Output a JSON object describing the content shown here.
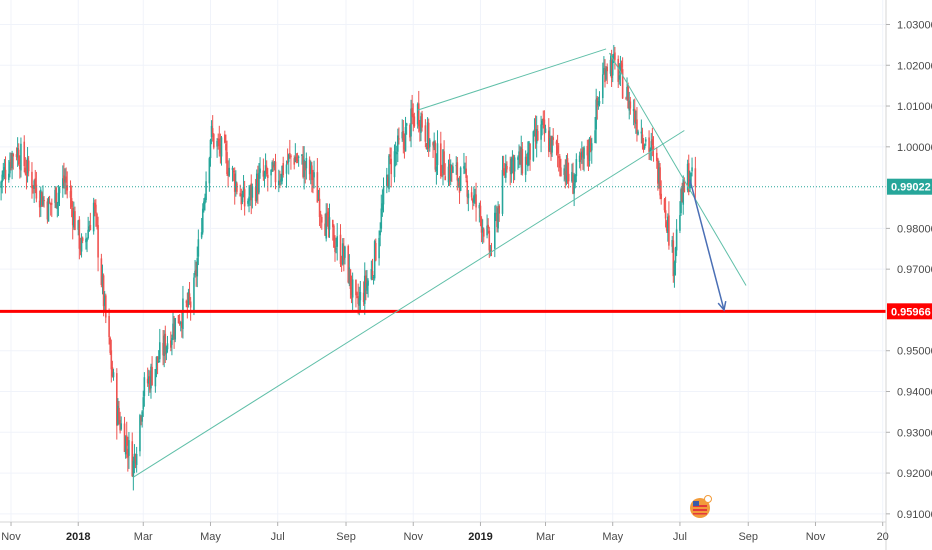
{
  "chart_data": {
    "type": "candlestick",
    "x_ticks": [
      {
        "date": "2017-11-01",
        "label": "Nov",
        "bold": false
      },
      {
        "date": "2018-01-01",
        "label": "2018",
        "bold": true
      },
      {
        "date": "2018-03-01",
        "label": "Mar",
        "bold": false
      },
      {
        "date": "2018-05-01",
        "label": "May",
        "bold": false
      },
      {
        "date": "2018-07-01",
        "label": "Jul",
        "bold": false
      },
      {
        "date": "2018-09-01",
        "label": "Sep",
        "bold": false
      },
      {
        "date": "2018-11-01",
        "label": "Nov",
        "bold": false
      },
      {
        "date": "2019-01-01",
        "label": "2019",
        "bold": true
      },
      {
        "date": "2019-03-01",
        "label": "Mar",
        "bold": false
      },
      {
        "date": "2019-05-01",
        "label": "May",
        "bold": false
      },
      {
        "date": "2019-07-01",
        "label": "Jul",
        "bold": false
      },
      {
        "date": "2019-09-01",
        "label": "Sep",
        "bold": false
      },
      {
        "date": "2019-11-01",
        "label": "Nov",
        "bold": false
      },
      {
        "date": "2020-01-01",
        "label": "20",
        "bold": false
      }
    ],
    "y_ticks": [
      {
        "value": 1.03,
        "label": "1.03000"
      },
      {
        "value": 1.02,
        "label": "1.02000"
      },
      {
        "value": 1.01,
        "label": "1.01000"
      },
      {
        "value": 1.0,
        "label": "1.00000"
      },
      {
        "value": 0.98,
        "label": "0.98000"
      },
      {
        "value": 0.97,
        "label": "0.97000"
      },
      {
        "value": 0.95,
        "label": "0.95000"
      },
      {
        "value": 0.94,
        "label": "0.94000"
      },
      {
        "value": 0.93,
        "label": "0.93000"
      },
      {
        "value": 0.92,
        "label": "0.92000"
      },
      {
        "value": 0.91,
        "label": "0.91000"
      }
    ],
    "price_markers": [
      {
        "value": 0.99022,
        "label": "0.99022",
        "color": "#26a69a",
        "style": "dotted"
      },
      {
        "value": 0.95966,
        "label": "0.95966",
        "color": "#ff0000",
        "style": "solid"
      }
    ],
    "close_path": [
      [
        "2017-10-20",
        0.99
      ],
      [
        "2017-11-05",
        1.0
      ],
      [
        "2017-11-20",
        0.992
      ],
      [
        "2017-12-05",
        0.985
      ],
      [
        "2017-12-20",
        0.992
      ],
      [
        "2018-01-05",
        0.974
      ],
      [
        "2018-01-15",
        0.986
      ],
      [
        "2018-01-25",
        0.96
      ],
      [
        "2018-02-05",
        0.935
      ],
      [
        "2018-02-20",
        0.922
      ],
      [
        "2018-03-01",
        0.94
      ],
      [
        "2018-03-15",
        0.948
      ],
      [
        "2018-04-01",
        0.958
      ],
      [
        "2018-04-15",
        0.962
      ],
      [
        "2018-05-01",
        1.003
      ],
      [
        "2018-05-15",
        0.997
      ],
      [
        "2018-06-01",
        0.986
      ],
      [
        "2018-06-15",
        0.992
      ],
      [
        "2018-07-01",
        0.993
      ],
      [
        "2018-07-15",
        0.998
      ],
      [
        "2018-08-01",
        0.993
      ],
      [
        "2018-08-15",
        0.98
      ],
      [
        "2018-09-01",
        0.972
      ],
      [
        "2018-09-10",
        0.96
      ],
      [
        "2018-09-25",
        0.97
      ],
      [
        "2018-10-10",
        0.995
      ],
      [
        "2018-10-25",
        1.003
      ],
      [
        "2018-11-05",
        1.009
      ],
      [
        "2018-11-20",
        0.998
      ],
      [
        "2018-12-05",
        0.994
      ],
      [
        "2018-12-20",
        0.991
      ],
      [
        "2019-01-05",
        0.98
      ],
      [
        "2019-01-10",
        0.974
      ],
      [
        "2019-01-25",
        0.997
      ],
      [
        "2019-02-10",
        0.996
      ],
      [
        "2019-02-25",
        1.004
      ],
      [
        "2019-03-10",
        0.999
      ],
      [
        "2019-03-25",
        0.991
      ],
      [
        "2019-04-10",
        1.0
      ],
      [
        "2019-04-25",
        1.021
      ],
      [
        "2019-05-05",
        1.019
      ],
      [
        "2019-05-20",
        1.008
      ],
      [
        "2019-06-05",
        0.999
      ],
      [
        "2019-06-15",
        0.99
      ],
      [
        "2019-06-25",
        0.972
      ],
      [
        "2019-07-01",
        0.985
      ],
      [
        "2019-07-08",
        0.993
      ],
      [
        "2019-07-15",
        0.99
      ]
    ],
    "trend_lines": [
      {
        "from": [
          "2018-02-20",
          0.919
        ],
        "to": [
          "2019-07-05",
          1.004
        ],
        "color": "#5fbfa8",
        "arrow": false
      },
      {
        "from": [
          "2018-11-05",
          1.009
        ],
        "to": [
          "2019-04-25",
          1.024
        ],
        "color": "#5fbfa8",
        "arrow": false
      },
      {
        "from": [
          "2019-04-28",
          1.023
        ],
        "to": [
          "2019-08-30",
          0.966
        ],
        "color": "#5fbfa8",
        "arrow": false
      },
      {
        "from": [
          "2019-07-10",
          0.992
        ],
        "to": [
          "2019-08-10",
          0.96
        ],
        "color": "#4a6fb5",
        "arrow": true
      }
    ],
    "ylim": [
      0.908,
      1.036
    ],
    "xlim": [
      "2017-10-22",
      "2020-01-04"
    ]
  }
}
